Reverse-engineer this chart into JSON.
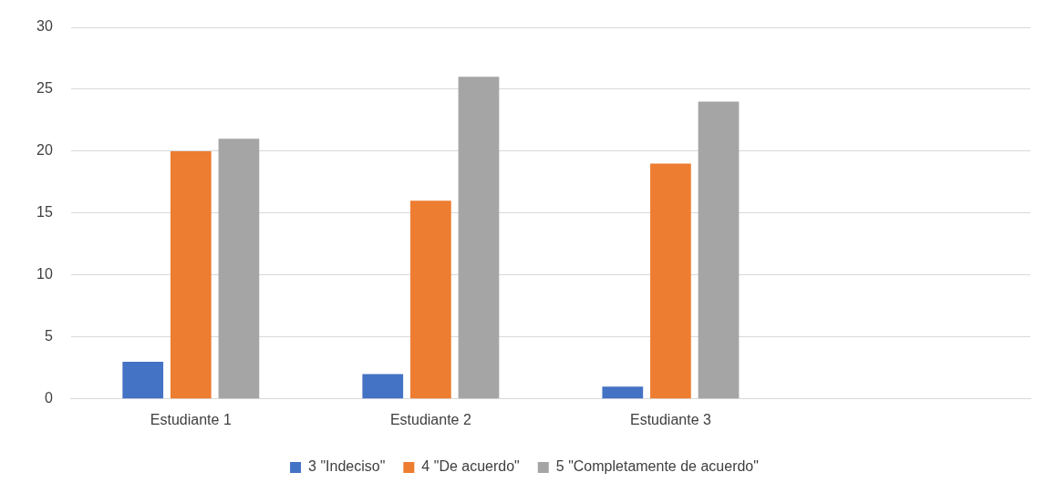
{
  "chart_data": {
    "type": "bar",
    "categories": [
      "Estudiante 1",
      "Estudiante 2",
      "Estudiante 3",
      null
    ],
    "series": [
      {
        "name": "3 \"Indeciso\"",
        "color": "#4472c4",
        "values": [
          3,
          2,
          1,
          null
        ]
      },
      {
        "name": "4 \"De acuerdo\"",
        "color": "#ed7d31",
        "values": [
          20,
          16,
          19,
          null
        ]
      },
      {
        "name": "5 \"Completamente de acuerdo\"",
        "color": "#a5a5a5",
        "values": [
          21,
          26,
          24,
          null
        ]
      }
    ],
    "ylim": [
      0,
      30
    ],
    "yticks": [
      0,
      5,
      10,
      15,
      20,
      25,
      30
    ],
    "grid": "y",
    "legend": "bottom"
  }
}
